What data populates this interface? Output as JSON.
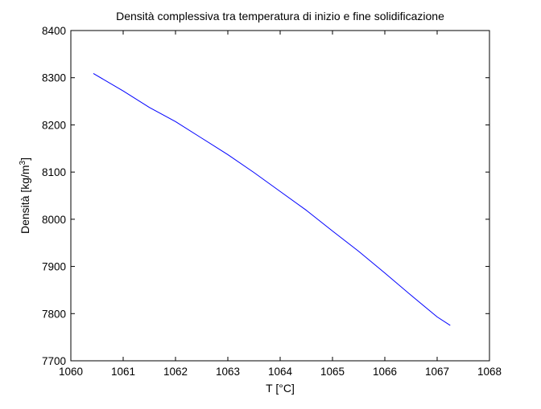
{
  "chart_data": {
    "type": "line",
    "title": "Densità complessiva tra temperatura di inizio e fine solidificazione",
    "xlabel": "T [°C]",
    "ylabel": "Densità [kg/m",
    "ylabel_sup": "3",
    "ylabel_close": "]",
    "xlim": [
      1060,
      1068
    ],
    "ylim": [
      7700,
      8400
    ],
    "xticks": [
      1060,
      1061,
      1062,
      1063,
      1064,
      1065,
      1066,
      1067,
      1068
    ],
    "yticks": [
      7700,
      7800,
      7900,
      8000,
      8100,
      8200,
      8300,
      8400
    ],
    "grid": false,
    "legend": "none",
    "series": [
      {
        "color": "#0000ff",
        "x": [
          1060.43,
          1061.0,
          1061.5,
          1062.0,
          1062.5,
          1063.0,
          1063.5,
          1064.0,
          1064.5,
          1065.0,
          1065.5,
          1066.0,
          1066.5,
          1067.0,
          1067.25
        ],
        "y": [
          8309,
          8272,
          8237,
          8207,
          8172,
          8137,
          8099,
          8059,
          8019,
          7975,
          7932,
          7886,
          7839,
          7793,
          7775
        ]
      }
    ]
  }
}
